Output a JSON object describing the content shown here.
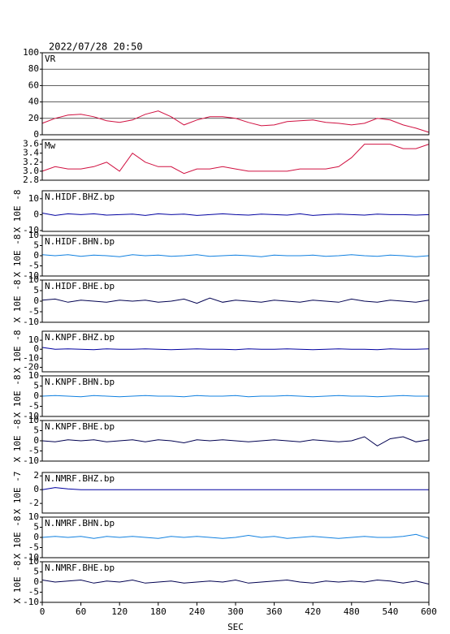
{
  "header": "2022/07/28 20:50",
  "chart_data": [
    {
      "type": "line",
      "title": "VR",
      "color": "#d01040",
      "grid": true,
      "x": [
        0,
        20,
        40,
        60,
        80,
        100,
        120,
        140,
        160,
        180,
        200,
        220,
        240,
        260,
        280,
        300,
        320,
        340,
        360,
        380,
        400,
        420,
        440,
        460,
        480,
        500,
        520,
        540,
        560,
        580,
        600
      ],
      "values": [
        14,
        20,
        24,
        25,
        22,
        17,
        15,
        18,
        25,
        29,
        22,
        12,
        18,
        22,
        22,
        20,
        15,
        11,
        12,
        16,
        17,
        18,
        15,
        14,
        12,
        14,
        20,
        18,
        12,
        8,
        3
      ],
      "xlim": [
        0,
        600
      ],
      "ylim": [
        0,
        100
      ],
      "yticks": [
        0,
        20,
        40,
        60,
        80,
        100
      ]
    },
    {
      "type": "line",
      "title": "Mw",
      "color": "#d01040",
      "x": [
        0,
        20,
        40,
        60,
        80,
        100,
        120,
        140,
        160,
        180,
        200,
        220,
        240,
        260,
        280,
        300,
        320,
        340,
        360,
        380,
        400,
        420,
        440,
        460,
        480,
        500,
        520,
        540,
        560,
        580,
        600
      ],
      "values": [
        3.0,
        3.1,
        3.05,
        3.05,
        3.1,
        3.2,
        3.0,
        3.4,
        3.2,
        3.1,
        3.1,
        2.95,
        3.05,
        3.05,
        3.1,
        3.05,
        3.0,
        3.0,
        3.0,
        3.0,
        3.05,
        3.05,
        3.05,
        3.1,
        3.3,
        3.6,
        3.6,
        3.6,
        3.5,
        3.5,
        3.6
      ],
      "xlim": [
        0,
        600
      ],
      "ylim": [
        2.8,
        3.7
      ],
      "yticks": [
        2.8,
        {
          "value": 3,
          "label": "3.0"
        },
        3.2,
        3.4,
        3.6
      ]
    },
    {
      "type": "line",
      "title": "N.HIDF.BHZ.bp",
      "y_label": "X 10E -8",
      "color": "#0000a0",
      "x": [
        0,
        20,
        40,
        60,
        80,
        100,
        120,
        140,
        160,
        180,
        200,
        220,
        240,
        260,
        280,
        300,
        320,
        340,
        360,
        380,
        400,
        420,
        440,
        460,
        480,
        500,
        520,
        540,
        560,
        580,
        600
      ],
      "values": [
        1,
        -0.5,
        0.5,
        0,
        0.5,
        -0.3,
        0,
        0.3,
        -0.5,
        0.5,
        0,
        0.3,
        -0.5,
        0,
        0.5,
        0,
        -0.3,
        0.3,
        0,
        -0.3,
        0.5,
        -0.5,
        0,
        0.3,
        0,
        -0.3,
        0.3,
        0,
        0,
        -0.3,
        0
      ],
      "xlim": [
        0,
        600
      ],
      "ylim": [
        -10.5,
        15
      ],
      "yticks": [
        -10,
        0,
        10
      ]
    },
    {
      "type": "line",
      "title": "N.HIDF.BHN.bp",
      "y_label": "X 10E -8",
      "color": "#1080e0",
      "x": [
        0,
        20,
        40,
        60,
        80,
        100,
        120,
        140,
        160,
        180,
        200,
        220,
        240,
        260,
        280,
        300,
        320,
        340,
        360,
        380,
        400,
        420,
        440,
        460,
        480,
        500,
        520,
        540,
        560,
        580,
        600
      ],
      "values": [
        0.5,
        0,
        0.5,
        -0.3,
        0.3,
        0,
        -0.5,
        0.5,
        0,
        0.3,
        -0.3,
        0,
        0.5,
        -0.3,
        0,
        0.3,
        0,
        -0.5,
        0.3,
        0,
        0,
        0.3,
        -0.3,
        0,
        0.5,
        0,
        -0.3,
        0.3,
        0,
        -0.5,
        0
      ],
      "xlim": [
        0,
        600
      ],
      "ylim": [
        -10,
        10
      ],
      "yticks": [
        -10,
        -5,
        0,
        5,
        10
      ]
    },
    {
      "type": "line",
      "title": "N.HIDF.BHE.bp",
      "y_label": "X 10E -8",
      "color": "#000050",
      "x": [
        0,
        20,
        40,
        60,
        80,
        100,
        120,
        140,
        160,
        180,
        200,
        220,
        240,
        260,
        280,
        300,
        320,
        340,
        360,
        380,
        400,
        420,
        440,
        460,
        480,
        500,
        520,
        540,
        560,
        580,
        600
      ],
      "values": [
        0.5,
        1,
        -0.5,
        0.5,
        0,
        -0.5,
        0.5,
        0,
        0.5,
        -0.5,
        0,
        1,
        -1,
        1.5,
        -0.5,
        0.5,
        0,
        -0.5,
        0.5,
        0,
        -0.5,
        0.5,
        0,
        -0.5,
        1,
        0,
        -0.5,
        0.5,
        0,
        -0.5,
        0.5
      ],
      "xlim": [
        0,
        600
      ],
      "ylim": [
        -10,
        10
      ],
      "yticks": [
        -10,
        -5,
        0,
        5,
        10
      ]
    },
    {
      "type": "line",
      "title": "N.KNPF.BHZ.bp",
      "y_label": "X 10E -8",
      "color": "#0000a0",
      "x": [
        0,
        20,
        40,
        60,
        80,
        100,
        120,
        140,
        160,
        180,
        200,
        220,
        240,
        260,
        280,
        300,
        320,
        340,
        360,
        380,
        400,
        420,
        440,
        460,
        480,
        500,
        520,
        540,
        560,
        580,
        600
      ],
      "values": [
        2,
        0,
        0.5,
        0,
        -0.5,
        0.5,
        0,
        0,
        0.5,
        0,
        -0.5,
        0,
        0.5,
        0,
        0,
        -0.5,
        0.5,
        0,
        0,
        0.5,
        0,
        -0.5,
        0,
        0.5,
        0,
        0,
        -0.5,
        0.5,
        0,
        0,
        0.5
      ],
      "xlim": [
        0,
        600
      ],
      "ylim": [
        -25,
        20
      ],
      "yticks": [
        -20,
        -10,
        0,
        10
      ]
    },
    {
      "type": "line",
      "title": "N.KNPF.BHN.bp",
      "y_label": "X 10E -8",
      "color": "#1080e0",
      "x": [
        0,
        20,
        40,
        60,
        80,
        100,
        120,
        140,
        160,
        180,
        200,
        220,
        240,
        260,
        280,
        300,
        320,
        340,
        360,
        380,
        400,
        420,
        440,
        460,
        480,
        500,
        520,
        540,
        560,
        580,
        600
      ],
      "values": [
        0,
        0.3,
        0,
        -0.3,
        0.3,
        0,
        -0.3,
        0,
        0.3,
        0,
        0,
        -0.3,
        0.3,
        0,
        0,
        0.3,
        -0.3,
        0,
        0,
        0.3,
        0,
        -0.3,
        0,
        0.3,
        0,
        0,
        -0.3,
        0,
        0.3,
        0,
        0
      ],
      "xlim": [
        0,
        600
      ],
      "ylim": [
        -10,
        10
      ],
      "yticks": [
        -10,
        -5,
        0,
        5,
        10
      ]
    },
    {
      "type": "line",
      "title": "N.KNPF.BHE.bp",
      "y_label": "X 10E -8",
      "color": "#000050",
      "x": [
        0,
        20,
        40,
        60,
        80,
        100,
        120,
        140,
        160,
        180,
        200,
        220,
        240,
        260,
        280,
        300,
        320,
        340,
        360,
        380,
        400,
        420,
        440,
        460,
        480,
        500,
        520,
        540,
        560,
        580,
        600
      ],
      "values": [
        0,
        -0.5,
        0.5,
        0,
        0.5,
        -0.5,
        0,
        0.5,
        -0.5,
        0.5,
        0,
        -1,
        0.5,
        0,
        0.5,
        0,
        -0.5,
        0,
        0.5,
        0,
        -0.5,
        0.5,
        0,
        -0.5,
        0,
        2,
        -2.5,
        1,
        2,
        -0.5,
        0.5
      ],
      "xlim": [
        0,
        600
      ],
      "ylim": [
        -10,
        10
      ],
      "yticks": [
        -10,
        -5,
        0,
        5,
        10
      ]
    },
    {
      "type": "line",
      "title": "N.NMRF.BHZ.bp",
      "y_label": "X 10E -7",
      "color": "#0000a0",
      "x": [
        0,
        20,
        40,
        60,
        80,
        100,
        120,
        140,
        160,
        180,
        200,
        220,
        240,
        260,
        280,
        300,
        320,
        340,
        360,
        380,
        400,
        420,
        440,
        460,
        480,
        500,
        520,
        540,
        560,
        580,
        600
      ],
      "values": [
        0,
        0.3,
        0.1,
        0,
        0,
        0,
        0,
        0,
        0,
        0,
        0,
        0,
        0,
        0,
        0,
        0,
        0,
        0,
        0,
        0,
        0,
        0,
        0,
        0,
        0,
        0,
        0,
        0,
        0,
        0,
        0
      ],
      "xlim": [
        0,
        600
      ],
      "ylim": [
        -3.4,
        2.5
      ],
      "yticks": [
        -2,
        0,
        2
      ]
    },
    {
      "type": "line",
      "title": "N.NMRF.BHN.bp",
      "y_label": "X 10E -8",
      "color": "#1080e0",
      "x": [
        0,
        20,
        40,
        60,
        80,
        100,
        120,
        140,
        160,
        180,
        200,
        220,
        240,
        260,
        280,
        300,
        320,
        340,
        360,
        380,
        400,
        420,
        440,
        460,
        480,
        500,
        520,
        540,
        560,
        580,
        600
      ],
      "values": [
        0,
        0.5,
        0,
        0.5,
        -0.5,
        0.5,
        0,
        0.5,
        0,
        -0.5,
        0.5,
        0,
        0.5,
        0,
        -0.5,
        0,
        1,
        0,
        0.5,
        -0.5,
        0,
        0.5,
        0,
        -0.5,
        0,
        0.5,
        0,
        0,
        0.5,
        1.5,
        -0.5
      ],
      "xlim": [
        0,
        600
      ],
      "ylim": [
        -10,
        10
      ],
      "yticks": [
        -10,
        -5,
        0,
        5,
        10
      ]
    },
    {
      "type": "line",
      "title": "N.NMRF.BHE.bp",
      "y_label": "X 10E -8",
      "color": "#000050",
      "x": [
        0,
        20,
        40,
        60,
        80,
        100,
        120,
        140,
        160,
        180,
        200,
        220,
        240,
        260,
        280,
        300,
        320,
        340,
        360,
        380,
        400,
        420,
        440,
        460,
        480,
        500,
        520,
        540,
        560,
        580,
        600
      ],
      "values": [
        1,
        0,
        0.5,
        1,
        -0.5,
        0.5,
        0,
        1,
        -0.5,
        0,
        0.5,
        -0.5,
        0,
        0.5,
        0,
        1,
        -0.5,
        0,
        0.5,
        1,
        0,
        -0.5,
        0.5,
        0,
        0.5,
        0,
        1,
        0.5,
        -0.5,
        0.5,
        -1
      ],
      "xlim": [
        0,
        600
      ],
      "ylim": [
        -10,
        10
      ],
      "yticks": [
        -10,
        -5,
        0,
        5,
        10
      ],
      "xticks": [
        0,
        60,
        120,
        180,
        240,
        300,
        360,
        420,
        480,
        540,
        600
      ],
      "x_label": "SEC"
    }
  ]
}
